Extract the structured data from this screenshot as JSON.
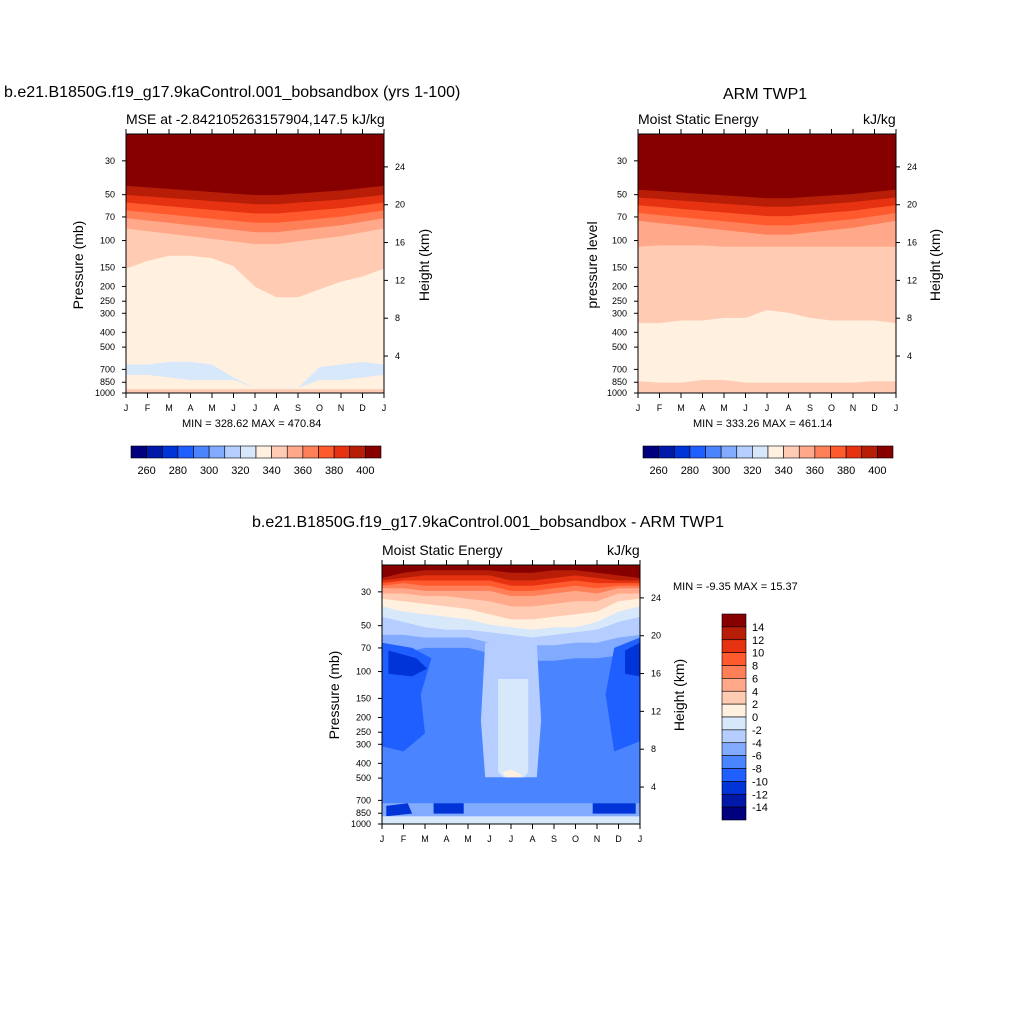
{
  "palette": [
    "#00007f",
    "#0018a8",
    "#0033d8",
    "#1f5fff",
    "#4a84ff",
    "#82abff",
    "#b5cdff",
    "#d8e8fb",
    "#fff0e0",
    "#ffccb3",
    "#ffa98a",
    "#ff7f59",
    "#ff5a2e",
    "#e63211",
    "#b81d08",
    "#870000"
  ],
  "months": [
    "J",
    "F",
    "M",
    "A",
    "M",
    "J",
    "J",
    "A",
    "S",
    "O",
    "N",
    "D",
    "J"
  ],
  "pressure_ticks": [
    "30",
    "50",
    "70",
    "100",
    "150",
    "200",
    "250",
    "300",
    "400",
    "500",
    "700",
    "850",
    "1000"
  ],
  "height_ticks": [
    "4",
    "8",
    "12",
    "16",
    "20",
    "24"
  ],
  "chart_data": [
    {
      "type": "heatmap",
      "title": "b.e21.B1850G.f19_g17.9kaControl.001_bobsandbox (yrs 1-100)",
      "left_label": "MSE at -2.842105263157904,147.5",
      "right_label": "kJ/kg",
      "ylabel": "Pressure (mb)",
      "y2label": "Height (km)",
      "minmax": "MIN = 328.62 MAX = 470.84",
      "colorbar_labels": [
        "260",
        "280",
        "300",
        "320",
        "340",
        "360",
        "380",
        "400"
      ],
      "x_range": [
        0,
        12
      ],
      "y_range": [
        1000,
        20
      ]
    },
    {
      "type": "heatmap",
      "title": "ARM TWP1",
      "left_label": "Moist Static Energy",
      "right_label": "kJ/kg",
      "ylabel": "pressure level",
      "y2label": "Height (km)",
      "minmax": "MIN = 333.26 MAX = 461.14",
      "colorbar_labels": [
        "260",
        "280",
        "300",
        "320",
        "340",
        "360",
        "380",
        "400"
      ],
      "x_range": [
        0,
        12
      ],
      "y_range": [
        1000,
        20
      ]
    },
    {
      "type": "heatmap",
      "title": "b.e21.B1850G.f19_g17.9kaControl.001_bobsandbox - ARM TWP1",
      "left_label": "Moist Static Energy",
      "right_label": "kJ/kg",
      "ylabel": "Pressure (mb)",
      "y2label": "Height (km)",
      "minmax": "MIN =  -9.35 MAX =  15.37",
      "colorbar_labels": [
        "14",
        "12",
        "10",
        "8",
        "6",
        "4",
        "2",
        "0",
        "-2",
        "-4",
        "-6",
        "-8",
        "-10",
        "-12",
        "-14"
      ],
      "x_range": [
        0,
        12
      ],
      "y_range": [
        1000,
        20
      ]
    }
  ]
}
